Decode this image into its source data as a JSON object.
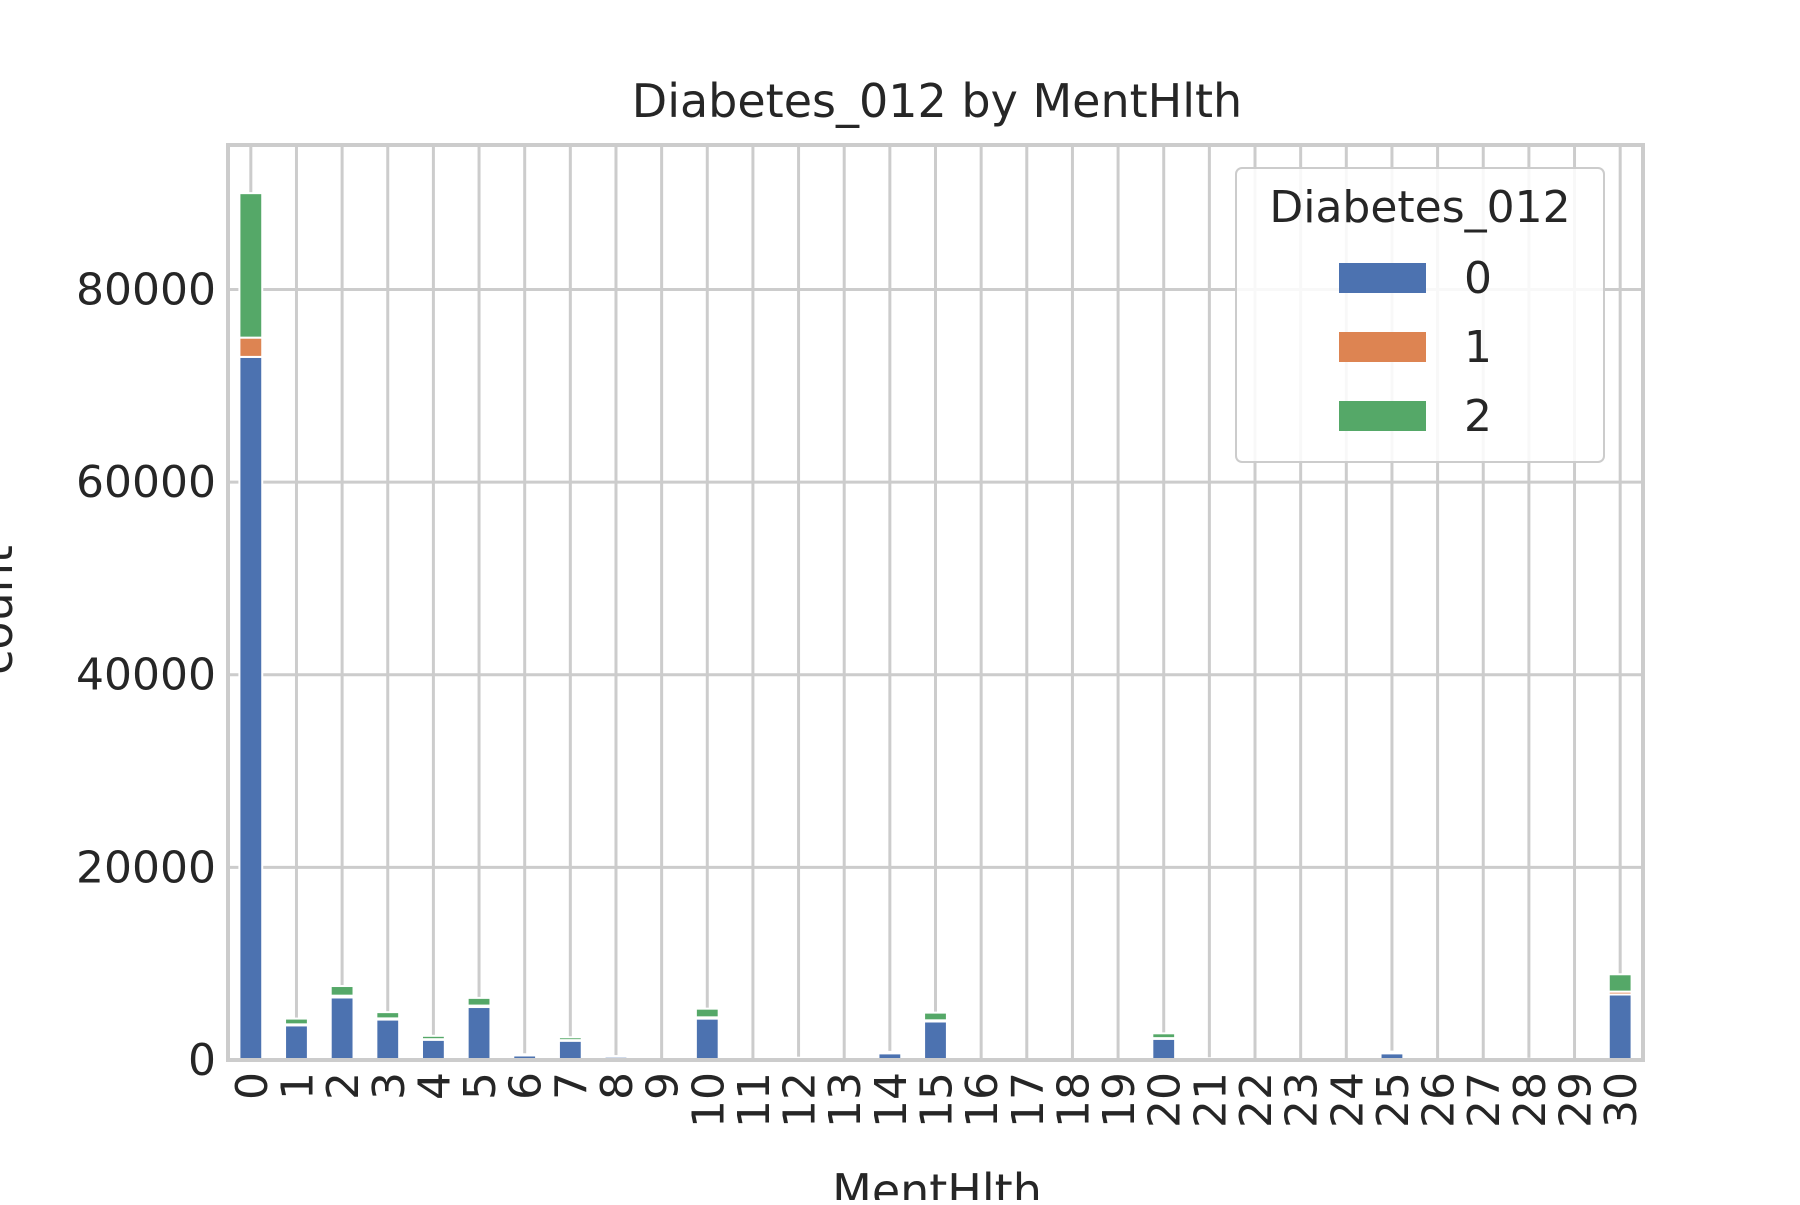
{
  "chart_data": {
    "type": "bar",
    "stacked": true,
    "title": "Diabetes_012 by MentHlth",
    "xlabel": "MentHlth",
    "ylabel": "count",
    "ylim": [
      0,
      95000
    ],
    "yticks": [
      0,
      20000,
      40000,
      60000,
      80000
    ],
    "grid": true,
    "legend_title": "Diabetes_012",
    "legend_position": "upper right",
    "categories": [
      "0",
      "1",
      "2",
      "3",
      "4",
      "5",
      "6",
      "7",
      "8",
      "9",
      "10",
      "11",
      "12",
      "13",
      "14",
      "15",
      "16",
      "17",
      "18",
      "19",
      "20",
      "21",
      "22",
      "23",
      "24",
      "25",
      "26",
      "27",
      "28",
      "29",
      "30"
    ],
    "series": [
      {
        "name": "0",
        "color": "#4c72b0",
        "values": [
          73000,
          3600,
          6500,
          4200,
          2100,
          5500,
          480,
          2000,
          350,
          30,
          4300,
          30,
          200,
          40,
          700,
          4000,
          40,
          30,
          40,
          10,
          2200,
          150,
          40,
          30,
          40,
          700,
          50,
          30,
          100,
          80,
          6800
        ]
      },
      {
        "name": "1",
        "color": "#dd8452",
        "values": [
          2000,
          100,
          180,
          120,
          60,
          150,
          15,
          60,
          10,
          1,
          130,
          1,
          6,
          1,
          20,
          120,
          1,
          1,
          1,
          0,
          70,
          4,
          1,
          1,
          1,
          20,
          1,
          1,
          3,
          2,
          300
        ]
      },
      {
        "name": "2",
        "color": "#55a868",
        "values": [
          15000,
          600,
          1000,
          650,
          350,
          800,
          100,
          300,
          50,
          5,
          900,
          5,
          35,
          5,
          120,
          800,
          8,
          4,
          5,
          2,
          500,
          25,
          5,
          5,
          5,
          150,
          8,
          5,
          20,
          15,
          1800
        ]
      }
    ]
  }
}
